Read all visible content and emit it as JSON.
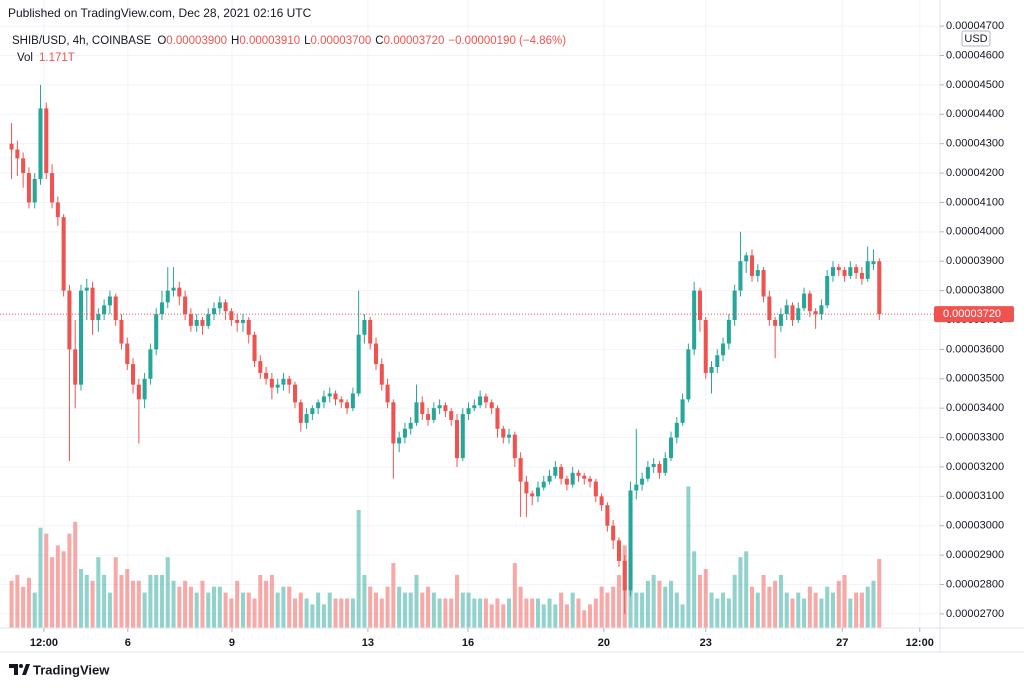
{
  "header": {
    "published": "Published on TradingView.com, Dec 28, 2021 02:16 UTC",
    "footer_brand": "TradingView"
  },
  "chart_data": {
    "type": "candlestick",
    "symbol": "SHIB/USD, 4h, COINBASE",
    "ohlc_keys": [
      "O",
      "H",
      "L",
      "C"
    ],
    "ohlc_labels": [
      "0.00003900",
      "0.00003910",
      "0.00003700",
      "0.00003720"
    ],
    "change_label": "−0.00000190 (−4.86%)",
    "volume_key": "Vol",
    "volume_label": "1.171T",
    "currency": "USD",
    "up_color": "#26a69a",
    "down_color": "#ef5350",
    "grid": true,
    "xlim": [
      -2,
      160.5
    ],
    "xticks": [
      {
        "value": 5.6,
        "label": "12:00"
      },
      {
        "value": 20.1,
        "label": "6"
      },
      {
        "value": 38.1,
        "label": "9"
      },
      {
        "value": 61.6,
        "label": "13"
      },
      {
        "value": 78.9,
        "label": "16"
      },
      {
        "value": 102.4,
        "label": "20"
      },
      {
        "value": 120,
        "label": "23"
      },
      {
        "value": 143.6,
        "label": "27"
      },
      {
        "value": 157,
        "label": "12:00"
      }
    ],
    "ylim": [
      2.652e-05,
      4.714e-05
    ],
    "yticks": [
      {
        "value": 2.7e-05,
        "label": "0.00002700"
      },
      {
        "value": 2.8e-05,
        "label": "0.00002800"
      },
      {
        "value": 2.9e-05,
        "label": "0.00002900"
      },
      {
        "value": 3e-05,
        "label": "0.00003000"
      },
      {
        "value": 3.1e-05,
        "label": "0.00003100"
      },
      {
        "value": 3.2e-05,
        "label": "0.00003200"
      },
      {
        "value": 3.3e-05,
        "label": "0.00003300"
      },
      {
        "value": 3.4e-05,
        "label": "0.00003400"
      },
      {
        "value": 3.5e-05,
        "label": "0.00003500"
      },
      {
        "value": 3.6e-05,
        "label": "0.00003600"
      },
      {
        "value": 3.7e-05,
        "label": "0.00003700"
      },
      {
        "value": 3.8e-05,
        "label": "0.00003800"
      },
      {
        "value": 3.9e-05,
        "label": "0.00003900"
      },
      {
        "value": 4e-05,
        "label": "0.00004000"
      },
      {
        "value": 4.1e-05,
        "label": "0.00004100"
      },
      {
        "value": 4.2e-05,
        "label": "0.00004200"
      },
      {
        "value": 4.3e-05,
        "label": "0.00004300"
      },
      {
        "value": 4.4e-05,
        "label": "0.00004400"
      },
      {
        "value": 4.5e-05,
        "label": "0.00004500"
      },
      {
        "value": 4.6e-05,
        "label": "0.00004600"
      },
      {
        "value": 4.7e-05,
        "label": "0.00004700"
      }
    ],
    "last_price": {
      "value": 3.72e-05,
      "label": "0.00003720"
    },
    "ohlc": [
      [
        4.3e-05,
        4.37e-05,
        4.18e-05,
        4.28e-05
      ],
      [
        4.28e-05,
        4.31e-05,
        4.19e-05,
        4.25e-05
      ],
      [
        4.25e-05,
        4.27e-05,
        4.15e-05,
        4.2e-05
      ],
      [
        4.2e-05,
        4.22e-05,
        4.08e-05,
        4.1e-05
      ],
      [
        4.1e-05,
        4.2e-05,
        4.08e-05,
        4.18e-05
      ],
      [
        4.18e-05,
        4.5e-05,
        4.16e-05,
        4.42e-05
      ],
      [
        4.42e-05,
        4.44e-05,
        4.18e-05,
        4.2e-05
      ],
      [
        4.2e-05,
        4.23e-05,
        4.08e-05,
        4.1e-05
      ],
      [
        4.1e-05,
        4.12e-05,
        4.02e-05,
        4.05e-05
      ],
      [
        4.05e-05,
        4.06e-05,
        3.78e-05,
        3.8e-05
      ],
      [
        3.8e-05,
        3.82e-05,
        3.22e-05,
        3.6e-05
      ],
      [
        3.6e-05,
        3.7e-05,
        3.4e-05,
        3.48e-05
      ],
      [
        3.48e-05,
        3.82e-05,
        3.46e-05,
        3.8e-05
      ],
      [
        3.8e-05,
        3.84e-05,
        3.7e-05,
        3.81e-05
      ],
      [
        3.81e-05,
        3.83e-05,
        3.65e-05,
        3.7e-05
      ],
      [
        3.7e-05,
        3.74e-05,
        3.66e-05,
        3.72e-05
      ],
      [
        3.72e-05,
        3.77e-05,
        3.7e-05,
        3.75e-05
      ],
      [
        3.75e-05,
        3.8e-05,
        3.72e-05,
        3.78e-05
      ],
      [
        3.78e-05,
        3.79e-05,
        3.68e-05,
        3.7e-05
      ],
      [
        3.7e-05,
        3.72e-05,
        3.6e-05,
        3.62e-05
      ],
      [
        3.62e-05,
        3.64e-05,
        3.53e-05,
        3.55e-05
      ],
      [
        3.55e-05,
        3.57e-05,
        3.45e-05,
        3.48e-05
      ],
      [
        3.48e-05,
        3.5e-05,
        3.28e-05,
        3.43e-05
      ],
      [
        3.43e-05,
        3.52e-05,
        3.4e-05,
        3.5e-05
      ],
      [
        3.5e-05,
        3.62e-05,
        3.48e-05,
        3.6e-05
      ],
      [
        3.6e-05,
        3.74e-05,
        3.58e-05,
        3.72e-05
      ],
      [
        3.72e-05,
        3.8e-05,
        3.7e-05,
        3.76e-05
      ],
      [
        3.76e-05,
        3.88e-05,
        3.74e-05,
        3.8e-05
      ],
      [
        3.8e-05,
        3.88e-05,
        3.78e-05,
        3.81e-05
      ],
      [
        3.81e-05,
        3.83e-05,
        3.75e-05,
        3.78e-05
      ],
      [
        3.78e-05,
        3.8e-05,
        3.7e-05,
        3.72e-05
      ],
      [
        3.72e-05,
        3.74e-05,
        3.66e-05,
        3.68e-05
      ],
      [
        3.68e-05,
        3.72e-05,
        3.66e-05,
        3.7e-05
      ],
      [
        3.7e-05,
        3.71e-05,
        3.65e-05,
        3.68e-05
      ],
      [
        3.68e-05,
        3.74e-05,
        3.67e-05,
        3.72e-05
      ],
      [
        3.72e-05,
        3.76e-05,
        3.7e-05,
        3.74e-05
      ],
      [
        3.74e-05,
        3.78e-05,
        3.72e-05,
        3.76e-05
      ],
      [
        3.76e-05,
        3.77e-05,
        3.7e-05,
        3.73e-05
      ],
      [
        3.73e-05,
        3.74e-05,
        3.68e-05,
        3.7e-05
      ],
      [
        3.7e-05,
        3.72e-05,
        3.66e-05,
        3.69e-05
      ],
      [
        3.69e-05,
        3.72e-05,
        3.66e-05,
        3.7e-05
      ],
      [
        3.7e-05,
        3.71e-05,
        3.62e-05,
        3.65e-05
      ],
      [
        3.65e-05,
        3.66e-05,
        3.54e-05,
        3.56e-05
      ],
      [
        3.56e-05,
        3.58e-05,
        3.5e-05,
        3.52e-05
      ],
      [
        3.52e-05,
        3.54e-05,
        3.48e-05,
        3.5e-05
      ],
      [
        3.5e-05,
        3.52e-05,
        3.43e-05,
        3.47e-05
      ],
      [
        3.47e-05,
        3.5e-05,
        3.45e-05,
        3.48e-05
      ],
      [
        3.48e-05,
        3.52e-05,
        3.46e-05,
        3.5e-05
      ],
      [
        3.5e-05,
        3.51e-05,
        3.45e-05,
        3.48e-05
      ],
      [
        3.48e-05,
        3.49e-05,
        3.4e-05,
        3.42e-05
      ],
      [
        3.42e-05,
        3.43e-05,
        3.32e-05,
        3.35e-05
      ],
      [
        3.35e-05,
        3.4e-05,
        3.33e-05,
        3.38e-05
      ],
      [
        3.38e-05,
        3.41e-05,
        3.36e-05,
        3.4e-05
      ],
      [
        3.4e-05,
        3.43e-05,
        3.38e-05,
        3.42e-05
      ],
      [
        3.42e-05,
        3.46e-05,
        3.4e-05,
        3.44e-05
      ],
      [
        3.44e-05,
        3.47e-05,
        3.42e-05,
        3.45e-05
      ],
      [
        3.45e-05,
        3.46e-05,
        3.41e-05,
        3.43e-05
      ],
      [
        3.43e-05,
        3.44e-05,
        3.4e-05,
        3.42e-05
      ],
      [
        3.42e-05,
        3.43e-05,
        3.38e-05,
        3.4e-05
      ],
      [
        3.4e-05,
        3.47e-05,
        3.39e-05,
        3.45e-05
      ],
      [
        3.45e-05,
        3.8e-05,
        3.44e-05,
        3.65e-05
      ],
      [
        3.65e-05,
        3.72e-05,
        3.62e-05,
        3.7e-05
      ],
      [
        3.7e-05,
        3.71e-05,
        3.6e-05,
        3.62e-05
      ],
      [
        3.62e-05,
        3.64e-05,
        3.53e-05,
        3.55e-05
      ],
      [
        3.55e-05,
        3.57e-05,
        3.46e-05,
        3.48e-05
      ],
      [
        3.48e-05,
        3.5e-05,
        3.4e-05,
        3.42e-05
      ],
      [
        3.42e-05,
        3.43e-05,
        3.16e-05,
        3.28e-05
      ],
      [
        3.28e-05,
        3.32e-05,
        3.25e-05,
        3.3e-05
      ],
      [
        3.3e-05,
        3.35e-05,
        3.28e-05,
        3.33e-05
      ],
      [
        3.33e-05,
        3.37e-05,
        3.31e-05,
        3.35e-05
      ],
      [
        3.35e-05,
        3.48e-05,
        3.34e-05,
        3.42e-05
      ],
      [
        3.42e-05,
        3.44e-05,
        3.36e-05,
        3.38e-05
      ],
      [
        3.38e-05,
        3.4e-05,
        3.34e-05,
        3.36e-05
      ],
      [
        3.36e-05,
        3.42e-05,
        3.35e-05,
        3.4e-05
      ],
      [
        3.4e-05,
        3.43e-05,
        3.38e-05,
        3.41e-05
      ],
      [
        3.41e-05,
        3.42e-05,
        3.37e-05,
        3.39e-05
      ],
      [
        3.39e-05,
        3.4e-05,
        3.34e-05,
        3.36e-05
      ],
      [
        3.36e-05,
        3.38e-05,
        3.2e-05,
        3.23e-05
      ],
      [
        3.23e-05,
        3.4e-05,
        3.22e-05,
        3.38e-05
      ],
      [
        3.38e-05,
        3.42e-05,
        3.36e-05,
        3.4e-05
      ],
      [
        3.4e-05,
        3.43e-05,
        3.39e-05,
        3.41e-05
      ],
      [
        3.41e-05,
        3.46e-05,
        3.4e-05,
        3.44e-05
      ],
      [
        3.44e-05,
        3.45e-05,
        3.4e-05,
        3.42e-05
      ],
      [
        3.42e-05,
        3.43e-05,
        3.38e-05,
        3.4e-05
      ],
      [
        3.4e-05,
        3.41e-05,
        3.3e-05,
        3.33e-05
      ],
      [
        3.33e-05,
        3.34e-05,
        3.28e-05,
        3.3e-05
      ],
      [
        3.3e-05,
        3.33e-05,
        3.28e-05,
        3.31e-05
      ],
      [
        3.31e-05,
        3.32e-05,
        3.2e-05,
        3.23e-05
      ],
      [
        3.23e-05,
        3.25e-05,
        3.03e-05,
        3.15e-05
      ],
      [
        3.15e-05,
        3.17e-05,
        3.03e-05,
        3.11e-05
      ],
      [
        3.11e-05,
        3.12e-05,
        3.07e-05,
        3.1e-05
      ],
      [
        3.1e-05,
        3.15e-05,
        3.08e-05,
        3.13e-05
      ],
      [
        3.13e-05,
        3.17e-05,
        3.12e-05,
        3.15e-05
      ],
      [
        3.15e-05,
        3.19e-05,
        3.14e-05,
        3.17e-05
      ],
      [
        3.17e-05,
        3.22e-05,
        3.16e-05,
        3.2e-05
      ],
      [
        3.2e-05,
        3.21e-05,
        3.14e-05,
        3.16e-05
      ],
      [
        3.16e-05,
        3.17e-05,
        3.12e-05,
        3.14e-05
      ],
      [
        3.14e-05,
        3.2e-05,
        3.13e-05,
        3.18e-05
      ],
      [
        3.18e-05,
        3.19e-05,
        3.15e-05,
        3.17e-05
      ],
      [
        3.17e-05,
        3.18e-05,
        3.14e-05,
        3.16e-05
      ],
      [
        3.16e-05,
        3.17e-05,
        3.13e-05,
        3.15e-05
      ],
      [
        3.15e-05,
        3.16e-05,
        3.08e-05,
        3.1e-05
      ],
      [
        3.1e-05,
        3.11e-05,
        3.05e-05,
        3.07e-05
      ],
      [
        3.07e-05,
        3.08e-05,
        2.98e-05,
        3e-05
      ],
      [
        3e-05,
        3.02e-05,
        2.92e-05,
        2.95e-05
      ],
      [
        2.95e-05,
        2.96e-05,
        2.86e-05,
        2.88e-05
      ],
      [
        2.88e-05,
        2.9e-05,
        2.7e-05,
        2.78e-05
      ],
      [
        2.78e-05,
        3.15e-05,
        2.76e-05,
        3.12e-05
      ],
      [
        3.12e-05,
        3.33e-05,
        3.09e-05,
        3.14e-05
      ],
      [
        3.14e-05,
        3.18e-05,
        3.12e-05,
        3.16e-05
      ],
      [
        3.16e-05,
        3.22e-05,
        3.15e-05,
        3.2e-05
      ],
      [
        3.2e-05,
        3.23e-05,
        3.18e-05,
        3.21e-05
      ],
      [
        3.21e-05,
        3.22e-05,
        3.16e-05,
        3.18e-05
      ],
      [
        3.18e-05,
        3.25e-05,
        3.17e-05,
        3.23e-05
      ],
      [
        3.23e-05,
        3.32e-05,
        3.22e-05,
        3.3e-05
      ],
      [
        3.3e-05,
        3.37e-05,
        3.28e-05,
        3.35e-05
      ],
      [
        3.35e-05,
        3.45e-05,
        3.34e-05,
        3.43e-05
      ],
      [
        3.43e-05,
        3.62e-05,
        3.42e-05,
        3.6e-05
      ],
      [
        3.6e-05,
        3.83e-05,
        3.58e-05,
        3.8e-05
      ],
      [
        3.8e-05,
        3.81e-05,
        3.66e-05,
        3.7e-05
      ],
      [
        3.7e-05,
        3.71e-05,
        3.5e-05,
        3.52e-05
      ],
      [
        3.52e-05,
        3.56e-05,
        3.45e-05,
        3.54e-05
      ],
      [
        3.54e-05,
        3.6e-05,
        3.52e-05,
        3.58e-05
      ],
      [
        3.58e-05,
        3.64e-05,
        3.56e-05,
        3.62e-05
      ],
      [
        3.62e-05,
        3.72e-05,
        3.6e-05,
        3.7e-05
      ],
      [
        3.7e-05,
        3.82e-05,
        3.68e-05,
        3.8e-05
      ],
      [
        3.8e-05,
        4e-05,
        3.78e-05,
        3.9e-05
      ],
      [
        3.9e-05,
        3.93e-05,
        3.86e-05,
        3.92e-05
      ],
      [
        3.92e-05,
        3.94e-05,
        3.83e-05,
        3.85e-05
      ],
      [
        3.85e-05,
        3.89e-05,
        3.83e-05,
        3.87e-05
      ],
      [
        3.87e-05,
        3.88e-05,
        3.76e-05,
        3.78e-05
      ],
      [
        3.78e-05,
        3.8e-05,
        3.68e-05,
        3.7e-05
      ],
      [
        3.7e-05,
        3.71e-05,
        3.57e-05,
        3.68e-05
      ],
      [
        3.68e-05,
        3.74e-05,
        3.66e-05,
        3.72e-05
      ],
      [
        3.72e-05,
        3.77e-05,
        3.7e-05,
        3.75e-05
      ],
      [
        3.75e-05,
        3.76e-05,
        3.68e-05,
        3.7e-05
      ],
      [
        3.7e-05,
        3.76e-05,
        3.69e-05,
        3.74e-05
      ],
      [
        3.74e-05,
        3.81e-05,
        3.73e-05,
        3.79e-05
      ],
      [
        3.79e-05,
        3.8e-05,
        3.71e-05,
        3.73e-05
      ],
      [
        3.73e-05,
        3.74e-05,
        3.67e-05,
        3.72e-05
      ],
      [
        3.72e-05,
        3.77e-05,
        3.7e-05,
        3.75e-05
      ],
      [
        3.75e-05,
        3.87e-05,
        3.74e-05,
        3.85e-05
      ],
      [
        3.85e-05,
        3.9e-05,
        3.83e-05,
        3.88e-05
      ],
      [
        3.88e-05,
        3.89e-05,
        3.85e-05,
        3.87e-05
      ],
      [
        3.87e-05,
        3.88e-05,
        3.83e-05,
        3.85e-05
      ],
      [
        3.85e-05,
        3.9e-05,
        3.84e-05,
        3.88e-05
      ],
      [
        3.88e-05,
        3.89e-05,
        3.84e-05,
        3.86e-05
      ],
      [
        3.86e-05,
        3.88e-05,
        3.82e-05,
        3.84e-05
      ],
      [
        3.84e-05,
        3.95e-05,
        3.83e-05,
        3.9e-05
      ],
      [
        3.89e-05,
        3.94e-05,
        3.87e-05,
        3.9e-05
      ],
      [
        3.9e-05,
        3.91e-05,
        3.7e-05,
        3.72e-05
      ]
    ],
    "volume": [
      0.8,
      0.9,
      0.7,
      0.85,
      0.6,
      1.7,
      1.6,
      1.2,
      1.4,
      1.3,
      1.6,
      1.8,
      1.0,
      0.9,
      0.8,
      1.2,
      0.9,
      0.6,
      1.2,
      0.9,
      1.0,
      0.8,
      0.8,
      0.6,
      0.9,
      0.9,
      0.9,
      1.2,
      0.8,
      0.7,
      0.8,
      0.7,
      0.6,
      0.8,
      0.6,
      0.7,
      0.7,
      0.6,
      0.5,
      0.8,
      0.6,
      0.6,
      0.5,
      0.9,
      0.8,
      0.9,
      0.6,
      0.7,
      0.7,
      0.5,
      0.6,
      0.5,
      0.4,
      0.6,
      0.4,
      0.6,
      0.5,
      0.5,
      0.5,
      0.5,
      2.0,
      0.9,
      0.7,
      0.6,
      0.5,
      0.7,
      1.1,
      0.7,
      0.6,
      0.6,
      0.9,
      0.6,
      0.7,
      0.6,
      0.5,
      0.5,
      0.5,
      0.9,
      0.6,
      0.6,
      0.5,
      0.5,
      0.5,
      0.4,
      0.5,
      0.4,
      0.5,
      1.1,
      0.7,
      0.5,
      0.5,
      0.5,
      0.4,
      0.5,
      0.4,
      0.6,
      0.4,
      0.6,
      0.5,
      0.3,
      0.4,
      0.5,
      0.7,
      0.6,
      0.7,
      0.9,
      1.4,
      1.3,
      0.6,
      0.6,
      0.8,
      0.9,
      0.8,
      0.7,
      0.8,
      0.6,
      0.4,
      2.4,
      1.3,
      0.9,
      1.0,
      0.6,
      0.5,
      0.6,
      0.5,
      0.9,
      1.2,
      1.3,
      0.7,
      0.6,
      0.9,
      0.7,
      0.8,
      0.9,
      0.6,
      0.5,
      0.6,
      0.5,
      0.7,
      0.6,
      0.5,
      0.7,
      0.6,
      0.8,
      0.9,
      0.5,
      0.6,
      0.6,
      0.7,
      0.8,
      1.171
    ]
  }
}
